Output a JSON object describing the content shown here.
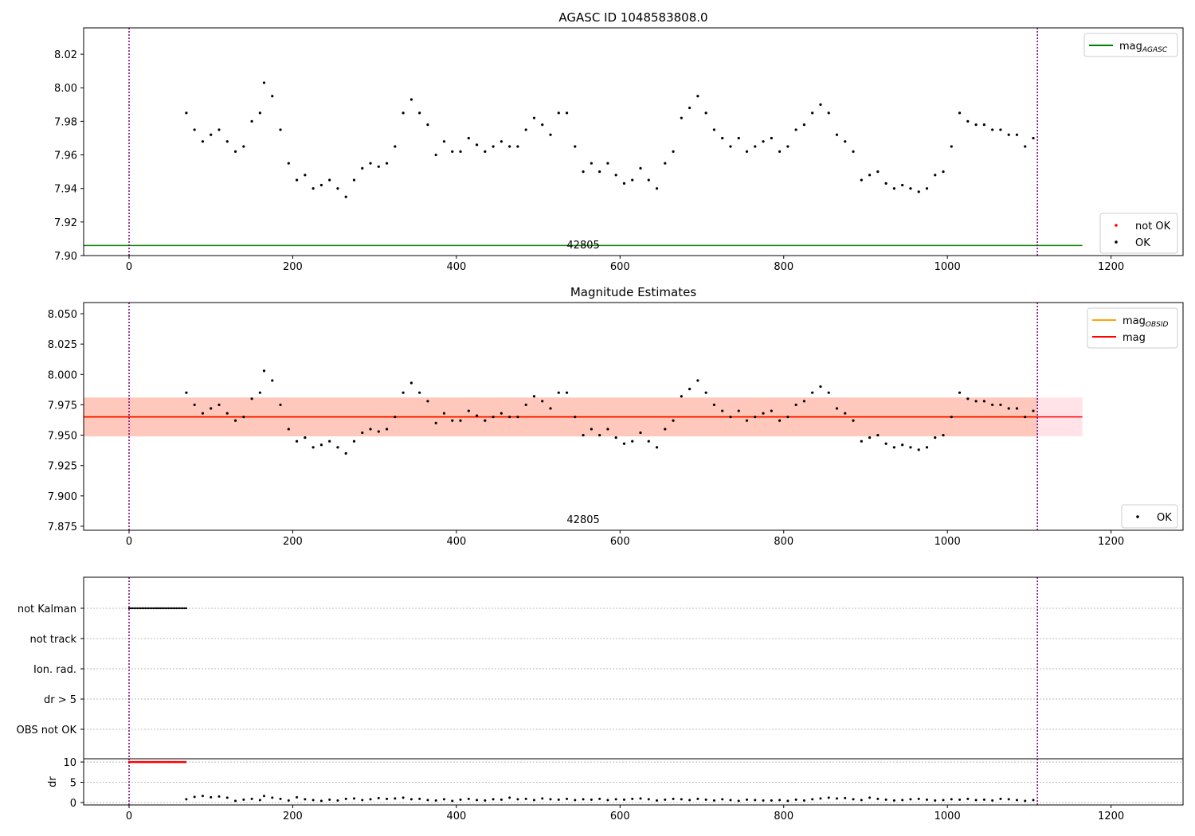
{
  "chart_data": [
    {
      "type": "scatter",
      "title": "AGASC ID 1048583808.0",
      "xlim": [
        -55.5,
        1288
      ],
      "ylim": [
        7.9,
        8.0357
      ],
      "xticks": [
        0,
        200,
        400,
        600,
        800,
        1000,
        1200
      ],
      "yticks": [
        7.9,
        7.92,
        7.94,
        7.96,
        7.98,
        8.0,
        8.02
      ],
      "ytick_labels": [
        "7.90",
        "7.92",
        "7.94",
        "7.96",
        "7.98",
        "8.00",
        "8.02"
      ],
      "mag_agasc": 7.906,
      "annotation": "42805",
      "legend_lines": [
        {
          "label": "mag",
          "sub": "AGASC",
          "color": "#008000"
        }
      ],
      "legend_points": [
        {
          "label": "not OK",
          "color": "#ff0000"
        },
        {
          "label": "OK",
          "color": "#000000"
        }
      ]
    },
    {
      "type": "scatter",
      "title": "Magnitude Estimates",
      "xlim": [
        -55.5,
        1288
      ],
      "ylim": [
        7.8717,
        8.0592
      ],
      "xticks": [
        0,
        200,
        400,
        600,
        800,
        1000,
        1200
      ],
      "yticks": [
        7.875,
        7.9,
        7.925,
        7.95,
        7.975,
        8.0,
        8.025,
        8.05
      ],
      "ytick_labels": [
        "7.875",
        "7.900",
        "7.925",
        "7.950",
        "7.975",
        "8.000",
        "8.025",
        "8.050"
      ],
      "mag": 7.965,
      "mag_obsid": 7.965,
      "band": [
        7.949,
        7.981
      ],
      "annotation": "42805",
      "legend_lines": [
        {
          "label": "mag",
          "sub": "OBSID",
          "color": "#ffa500"
        },
        {
          "label": "mag",
          "sub": "",
          "color": "#ff0000"
        }
      ],
      "legend_points": [
        {
          "label": "OK",
          "color": "#000000"
        }
      ]
    },
    {
      "type": "scatter",
      "categories": [
        "not Kalman",
        "not track",
        "Ion. rad.",
        "dr > 5",
        "OBS not OK"
      ],
      "not_kalman_range": [
        0,
        70
      ]
    },
    {
      "type": "scatter",
      "ylabel": "dr",
      "ylim": [
        -0.6,
        10.8
      ],
      "yticks": [
        0,
        5,
        10
      ],
      "ytick_labels": [
        "0",
        "5",
        "10"
      ],
      "not_ok_dr": 10,
      "xticks": [
        0,
        200,
        400,
        600,
        800,
        1000,
        1200
      ]
    }
  ],
  "obs_range": [
    0,
    1110
  ],
  "series": {
    "t": [
      70,
      80,
      90,
      100,
      110,
      120,
      130,
      140,
      150,
      160,
      165,
      175,
      185,
      195,
      205,
      215,
      225,
      235,
      245,
      255,
      265,
      275,
      285,
      295,
      305,
      315,
      325,
      335,
      345,
      355,
      365,
      375,
      385,
      395,
      405,
      415,
      425,
      435,
      445,
      455,
      465,
      475,
      485,
      495,
      505,
      515,
      525,
      535,
      545,
      555,
      565,
      575,
      585,
      595,
      605,
      615,
      625,
      635,
      645,
      655,
      665,
      675,
      685,
      695,
      705,
      715,
      725,
      735,
      745,
      755,
      765,
      775,
      785,
      795,
      805,
      815,
      825,
      835,
      845,
      855,
      865,
      875,
      885,
      895,
      905,
      915,
      925,
      935,
      945,
      955,
      965,
      975,
      985,
      995,
      1005,
      1015,
      1025,
      1035,
      1045,
      1055,
      1065,
      1075,
      1085,
      1095,
      1105
    ],
    "mag": [
      7.985,
      7.975,
      7.968,
      7.972,
      7.975,
      7.968,
      7.962,
      7.965,
      7.98,
      7.985,
      8.003,
      7.995,
      7.975,
      7.955,
      7.945,
      7.948,
      7.94,
      7.942,
      7.945,
      7.94,
      7.935,
      7.945,
      7.952,
      7.955,
      7.953,
      7.955,
      7.965,
      7.985,
      7.993,
      7.985,
      7.978,
      7.96,
      7.968,
      7.962,
      7.962,
      7.97,
      7.966,
      7.962,
      7.965,
      7.968,
      7.965,
      7.965,
      7.975,
      7.982,
      7.978,
      7.972,
      7.985,
      7.985,
      7.965,
      7.95,
      7.955,
      7.95,
      7.955,
      7.948,
      7.943,
      7.945,
      7.952,
      7.945,
      7.94,
      7.955,
      7.962,
      7.982,
      7.988,
      7.995,
      7.985,
      7.975,
      7.97,
      7.965,
      7.97,
      7.962,
      7.965,
      7.968,
      7.97,
      7.962,
      7.965,
      7.975,
      7.978,
      7.985,
      7.99,
      7.985,
      7.972,
      7.968,
      7.962,
      7.945,
      7.948,
      7.95,
      7.943,
      7.94,
      7.942,
      7.94,
      7.938,
      7.94,
      7.948,
      7.95,
      7.965,
      7.985,
      7.98,
      7.978,
      7.978,
      7.975,
      7.975,
      7.972,
      7.972,
      7.965,
      7.97
    ],
    "dr": [
      0.8,
      1.4,
      1.6,
      1.3,
      1.5,
      1.2,
      0.4,
      0.7,
      0.9,
      0.6,
      1.6,
      1.2,
      0.9,
      0.5,
      1.3,
      0.8,
      0.6,
      0.4,
      0.7,
      0.5,
      0.9,
      1.0,
      0.6,
      0.8,
      1.1,
      0.9,
      1.0,
      1.2,
      0.8,
      0.9,
      0.6,
      0.5,
      0.8,
      0.4,
      0.7,
      0.9,
      0.6,
      0.5,
      0.8,
      0.7,
      1.2,
      0.8,
      0.9,
      0.6,
      1.0,
      0.8,
      0.7,
      0.9,
      0.6,
      0.8,
      0.7,
      0.9,
      0.6,
      0.8,
      0.7,
      0.9,
      1.0,
      0.8,
      0.5,
      0.7,
      0.9,
      0.8,
      0.6,
      0.9,
      0.7,
      0.5,
      0.8,
      0.6,
      0.4,
      0.7,
      0.6,
      0.5,
      0.5,
      0.6,
      0.4,
      0.7,
      0.5,
      0.8,
      1.0,
      1.2,
      1.0,
      1.1,
      0.8,
      0.6,
      1.2,
      0.9,
      0.7,
      0.5,
      0.6,
      0.8,
      0.9,
      0.7,
      0.5,
      0.6,
      0.8,
      0.7,
      0.9,
      0.6,
      0.7,
      0.5,
      0.9,
      0.8,
      0.6,
      0.4,
      0.6
    ]
  }
}
